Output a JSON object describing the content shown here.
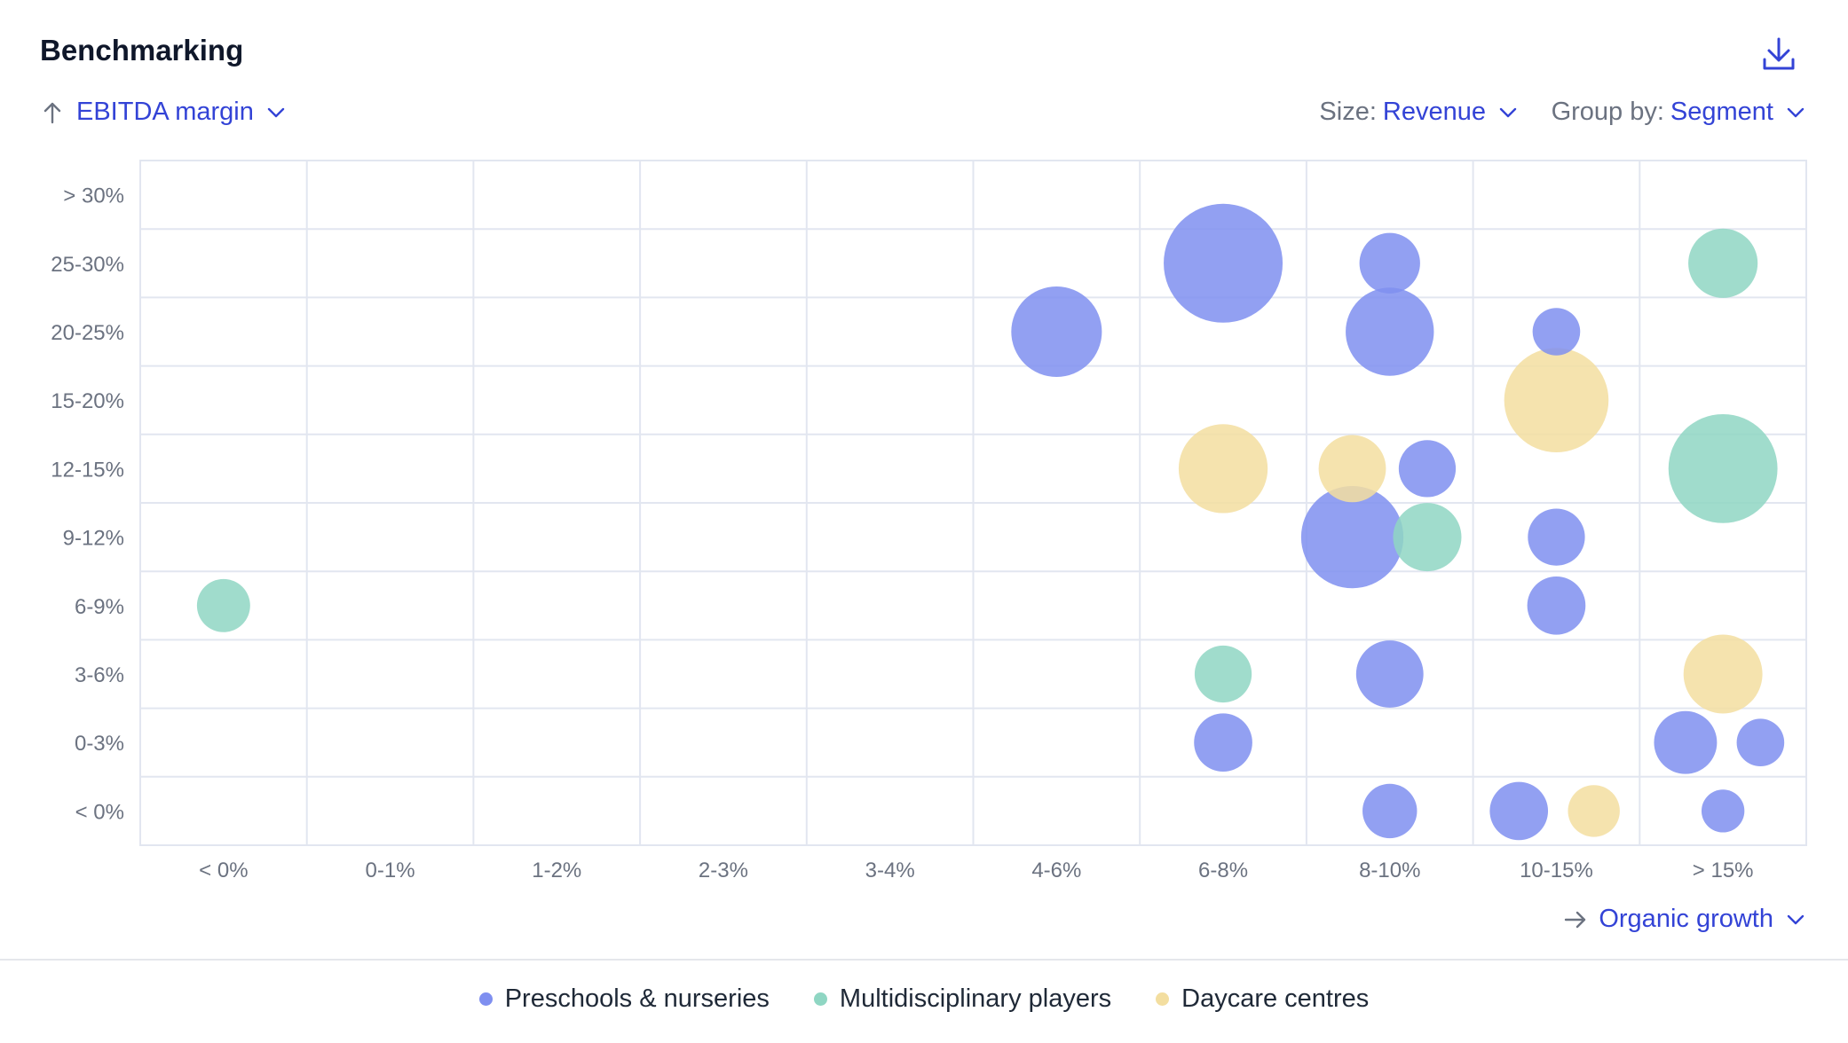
{
  "card": {
    "title": "Benchmarking",
    "download_icon": "download-icon"
  },
  "controls": {
    "y_metric": {
      "icon": "arrow-up-icon",
      "value": "EBITDA margin"
    },
    "size": {
      "label": "Size:",
      "value": "Revenue"
    },
    "group_by": {
      "label": "Group by:",
      "value": "Segment"
    },
    "x_metric": {
      "icon": "arrow-right-icon",
      "value": "Organic growth"
    }
  },
  "colors": {
    "preschools": "#7f8ff0",
    "multidisciplinary": "#8fd6c3",
    "daycare": "#f3dea0",
    "accent": "#3343d6",
    "grid": "#e2e6f0"
  },
  "chart_data": {
    "type": "scatter",
    "bubble": true,
    "xlabel": "Organic growth",
    "ylabel": "EBITDA margin",
    "size_metric": "Revenue",
    "x_categories": [
      "< 0%",
      "0-1%",
      "1-2%",
      "2-3%",
      "3-4%",
      "4-6%",
      "6-8%",
      "8-10%",
      "10-15%",
      "> 15%"
    ],
    "y_categories": [
      "< 0%",
      "0-3%",
      "3-6%",
      "6-9%",
      "9-12%",
      "12-15%",
      "15-20%",
      "20-25%",
      "25-30%",
      "> 30%"
    ],
    "grid": true,
    "legend_position": "bottom",
    "series": [
      {
        "name": "Preschools & nurseries",
        "color_key": "preschools",
        "points": [
          {
            "x": "6-8%",
            "y": "25-30%",
            "size": 100
          },
          {
            "x": "8-10%",
            "y": "25-30%",
            "size": 26
          },
          {
            "x": "4-6%",
            "y": "20-25%",
            "size": 58
          },
          {
            "x": "8-10%",
            "y": "20-25%",
            "size": 55
          },
          {
            "x": "10-15%",
            "y": "20-25%",
            "size": 16
          },
          {
            "x": "8-10%",
            "y": "12-15%",
            "size": 23
          },
          {
            "x": "8-10%",
            "y": "9-12%",
            "size": 74
          },
          {
            "x": "10-15%",
            "y": "9-12%",
            "size": 23
          },
          {
            "x": "10-15%",
            "y": "6-9%",
            "size": 24
          },
          {
            "x": "8-10%",
            "y": "3-6%",
            "size": 32
          },
          {
            "x": "6-8%",
            "y": "0-3%",
            "size": 24
          },
          {
            "x": "> 15%",
            "y": "0-3%",
            "size": 16
          },
          {
            "x": "> 15%",
            "y": "0-3%",
            "size": 28
          },
          {
            "x": "8-10%",
            "y": "< 0%",
            "size": 21
          },
          {
            "x": "10-15%",
            "y": "< 0%",
            "size": 24
          },
          {
            "x": "> 15%",
            "y": "< 0%",
            "size": 13
          }
        ]
      },
      {
        "name": "Multidisciplinary players",
        "color_key": "multidisciplinary",
        "points": [
          {
            "x": "> 15%",
            "y": "25-30%",
            "size": 34
          },
          {
            "x": "> 15%",
            "y": "12-15%",
            "size": 84
          },
          {
            "x": "8-10%",
            "y": "9-12%",
            "size": 33
          },
          {
            "x": "< 0%",
            "y": "6-9%",
            "size": 20
          },
          {
            "x": "6-8%",
            "y": "3-6%",
            "size": 23
          }
        ]
      },
      {
        "name": "Daycare centres",
        "color_key": "daycare",
        "points": [
          {
            "x": "10-15%",
            "y": "15-20%",
            "size": 77
          },
          {
            "x": "6-8%",
            "y": "12-15%",
            "size": 56
          },
          {
            "x": "8-10%",
            "y": "12-15%",
            "size": 32
          },
          {
            "x": "> 15%",
            "y": "3-6%",
            "size": 44
          },
          {
            "x": "10-15%",
            "y": "< 0%",
            "size": 19
          }
        ]
      }
    ]
  }
}
